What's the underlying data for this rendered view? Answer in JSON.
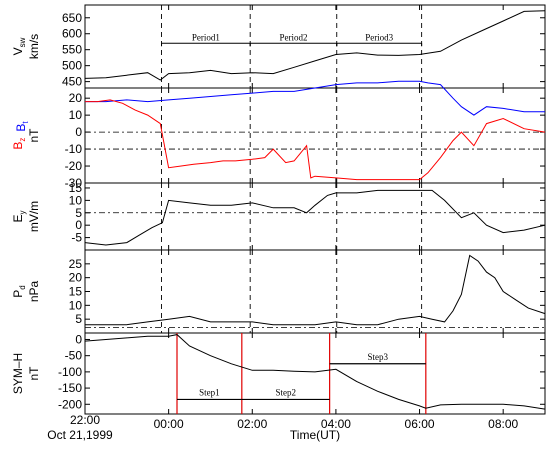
{
  "chart_data": {
    "type": "line",
    "x_axis": {
      "label": "Time(UT)",
      "start_label_line1": "22:00",
      "start_label_line2": "Oct 21,1999",
      "range_hours": [
        22,
        33
      ],
      "ticks": [
        {
          "t": 22,
          "label": "22:00"
        },
        {
          "t": 24,
          "label": "00:00"
        },
        {
          "t": 26,
          "label": "02:00"
        },
        {
          "t": 28,
          "label": "04:00"
        },
        {
          "t": 30,
          "label": "06:00"
        },
        {
          "t": 32,
          "label": "08:00"
        }
      ]
    },
    "vertical_lines": {
      "dashed_hours": [
        23.83,
        25.95,
        28.02,
        30.05
      ],
      "red_hours": [
        24.2,
        25.75,
        27.85,
        30.15
      ]
    },
    "panels": [
      {
        "id": "vsw",
        "ylabel_main": "V",
        "ylabel_sub": "sw",
        "ylabel_unit": "km/s",
        "ylim": [
          430,
          690
        ],
        "ticks": [
          "450",
          "500",
          "550",
          "600",
          "650"
        ],
        "tick_values": [
          450,
          500,
          550,
          600,
          650
        ],
        "series": [
          {
            "color": "#000000",
            "t": [
              22,
              22.5,
              23,
              23.5,
              23.8,
              24,
              24.5,
              25,
              25.5,
              26,
              26.5,
              27,
              27.5,
              28,
              28.5,
              29,
              29.5,
              30,
              30.5,
              31,
              31.5,
              32,
              32.5,
              33
            ],
            "v": [
              460,
              462,
              470,
              478,
              455,
              475,
              478,
              485,
              475,
              478,
              475,
              495,
              515,
              535,
              540,
              533,
              532,
              535,
              545,
              580,
              610,
              640,
              670,
              672
            ]
          }
        ],
        "annotations": {
          "brackets": [
            {
              "label": "Period1",
              "t0": 23.83,
              "t1": 25.95
            },
            {
              "label": "Period2",
              "t0": 25.95,
              "t1": 28.02
            },
            {
              "label": "Period3",
              "t0": 28.02,
              "t1": 30.05
            }
          ],
          "bracket_value": 570
        }
      },
      {
        "id": "bz_bt",
        "ylabel_parts": [
          {
            "text": "B",
            "sub": "z",
            "color": "#ff0000"
          },
          {
            "text": "B",
            "sub": "t",
            "color": "#0000ff"
          }
        ],
        "ylabel_unit": "nT",
        "ylim": [
          -30,
          26
        ],
        "ticks": [
          "20",
          "10",
          "0",
          "-10",
          "-20",
          "-30"
        ],
        "tick_values": [
          20,
          10,
          0,
          -10,
          -20,
          -30
        ],
        "hlines": [
          0,
          -10
        ],
        "series": [
          {
            "name": "Bt",
            "color": "#0000ff",
            "t": [
              22,
              22.5,
              23,
              23.5,
              24,
              24.5,
              25,
              25.5,
              26,
              26.5,
              27,
              27.5,
              28,
              28.5,
              29,
              29.5,
              30,
              30.2,
              30.5,
              30.8,
              31,
              31.3,
              31.6,
              32,
              32.5,
              33
            ],
            "v": [
              18,
              18,
              19,
              18,
              19,
              20,
              21,
              22,
              23,
              24,
              24,
              26,
              28,
              29,
              29,
              30,
              30,
              29,
              28,
              20,
              15,
              10,
              15,
              14,
              12,
              12
            ]
          },
          {
            "name": "Bz",
            "color": "#ff0000",
            "t": [
              22,
              22.3,
              22.6,
              22.9,
              23.2,
              23.5,
              23.8,
              24,
              24.3,
              24.6,
              25,
              25.3,
              25.6,
              26,
              26.3,
              26.5,
              26.8,
              27,
              27.3,
              27.4,
              27.5,
              28,
              28.5,
              29,
              29.5,
              30,
              30.2,
              30.5,
              30.8,
              31,
              31.3,
              31.6,
              32,
              32.5,
              33
            ],
            "v": [
              18,
              18,
              19,
              17,
              13,
              10,
              5,
              -21,
              -20,
              -19,
              -18,
              -17,
              -17,
              -16,
              -15,
              -10,
              -18,
              -17,
              -8,
              -27,
              -26,
              -27,
              -28,
              -28,
              -28,
              -28,
              -24,
              -15,
              -5,
              0,
              -8,
              5,
              8,
              2,
              0
            ]
          }
        ]
      },
      {
        "id": "ey",
        "ylabel_main": "E",
        "ylabel_sub": "y",
        "ylabel_unit": "mV/m",
        "ylim": [
          -10,
          17
        ],
        "ticks": [
          "15",
          "10",
          "5",
          "0",
          "-5"
        ],
        "tick_values": [
          15,
          10,
          5,
          0,
          -5
        ],
        "hlines": [
          5
        ],
        "series": [
          {
            "color": "#000000",
            "t": [
              22,
              22.5,
              23,
              23.3,
              23.6,
              23.85,
              24,
              24.5,
              25,
              25.5,
              26,
              26.5,
              27,
              27.3,
              27.5,
              27.8,
              28,
              28.5,
              29,
              29.5,
              30,
              30.3,
              30.6,
              31,
              31.3,
              31.6,
              32,
              32.5,
              33
            ],
            "v": [
              -7,
              -8,
              -7,
              -4,
              -1,
              1,
              10,
              9,
              8,
              8,
              9,
              7,
              7,
              5,
              8,
              12,
              13,
              13,
              14,
              14,
              14,
              14,
              10,
              3,
              5,
              0,
              -3,
              -2,
              0
            ]
          }
        ]
      },
      {
        "id": "pd",
        "ylabel_main": "P",
        "ylabel_sub": "d",
        "ylabel_unit": "nPa",
        "ylim": [
          0,
          30
        ],
        "ticks": [
          "25",
          "20",
          "15",
          "10",
          "5"
        ],
        "tick_values": [
          25,
          20,
          15,
          10,
          5
        ],
        "hlines": [
          2
        ],
        "series": [
          {
            "color": "#000000",
            "t": [
              22,
              22.5,
              23,
              23.5,
              24,
              24.5,
              25,
              25.5,
              26,
              26.5,
              27,
              27.5,
              28,
              28.5,
              29,
              29.5,
              30,
              30.3,
              30.6,
              30.8,
              31,
              31.2,
              31.4,
              31.6,
              31.8,
              32,
              32.3,
              32.6,
              33
            ],
            "v": [
              3,
              3,
              3,
              4,
              5,
              6,
              4,
              4,
              4,
              3,
              3,
              3,
              4,
              3,
              3,
              5,
              6,
              5,
              4,
              8,
              14,
              28,
              26,
              22,
              20,
              15,
              12,
              9,
              7
            ]
          }
        ]
      },
      {
        "id": "symh",
        "ylabel_main": "SYM–H",
        "ylabel_unit": "nT",
        "ylim": [
          -230,
          20
        ],
        "ticks": [
          "0",
          "-50",
          "-100",
          "-150",
          "-200"
        ],
        "tick_values": [
          0,
          -50,
          -100,
          -150,
          -200
        ],
        "series": [
          {
            "color": "#000000",
            "t": [
              22,
              22.5,
              23,
              23.5,
              24,
              24.2,
              24.5,
              25,
              25.5,
              26,
              26.5,
              27,
              27.5,
              28,
              28.5,
              29,
              29.5,
              30,
              30.15,
              30.5,
              31,
              31.5,
              32,
              32.5,
              33
            ],
            "v": [
              -5,
              0,
              5,
              10,
              10,
              15,
              -20,
              -50,
              -75,
              -95,
              -95,
              -98,
              -100,
              -92,
              -130,
              -160,
              -185,
              -205,
              -212,
              -202,
              -200,
              -200,
              -200,
              -205,
              -215
            ]
          }
        ],
        "steps": [
          {
            "label": "Step1",
            "t0": 24.2,
            "t1": 25.75,
            "v": -185
          },
          {
            "label": "Step2",
            "t0": 25.75,
            "t1": 27.85,
            "v": -185
          },
          {
            "label": "Step3",
            "t0": 27.85,
            "t1": 30.15,
            "v": -75
          }
        ]
      }
    ]
  }
}
